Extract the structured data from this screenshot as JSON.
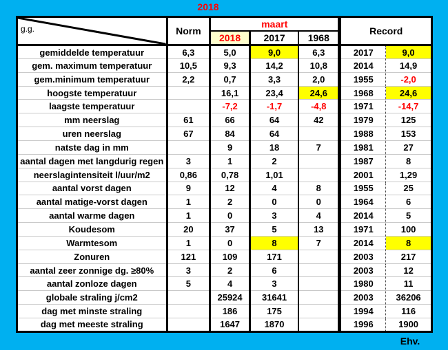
{
  "title": "2018",
  "corner_label": "g.g.",
  "footer": "Ehv.",
  "header": {
    "norm": "Norm",
    "month_group": "maart",
    "year_cols": [
      "2018",
      "2017",
      "1968"
    ],
    "record": "Record"
  },
  "colors": {
    "background": "#00B0F0",
    "highlight": "#FFFF00",
    "header_2018_bg": "#FFFFCC",
    "accent_red": "#FF0000"
  },
  "rows": [
    {
      "label": "gemiddelde temperatuur",
      "norm": {
        "v": "6,3"
      },
      "y2018": {
        "v": "5,0"
      },
      "y2017": {
        "v": "9,0",
        "hl": true
      },
      "y1968": {
        "v": "6,3"
      },
      "rec_year": {
        "v": "2017"
      },
      "rec_value": {
        "v": "9,0",
        "hl": true
      }
    },
    {
      "label": "gem. maximum temperatuur",
      "norm": {
        "v": "10,5"
      },
      "y2018": {
        "v": "9,3"
      },
      "y2017": {
        "v": "14,2"
      },
      "y1968": {
        "v": "10,8"
      },
      "rec_year": {
        "v": "2014"
      },
      "rec_value": {
        "v": "14,9"
      }
    },
    {
      "label": "gem.minimum temperatuur",
      "norm": {
        "v": "2,2"
      },
      "y2018": {
        "v": "0,7"
      },
      "y2017": {
        "v": "3,3"
      },
      "y1968": {
        "v": "2,0"
      },
      "rec_year": {
        "v": "1955"
      },
      "rec_value": {
        "v": "-2,0",
        "neg": true
      }
    },
    {
      "label": "hoogste temperatuur",
      "norm": {
        "v": ""
      },
      "y2018": {
        "v": "16,1"
      },
      "y2017": {
        "v": "23,4"
      },
      "y1968": {
        "v": "24,6",
        "hl": true
      },
      "rec_year": {
        "v": "1968"
      },
      "rec_value": {
        "v": "24,6",
        "hl": true
      }
    },
    {
      "label": "laagste temperatuur",
      "norm": {
        "v": ""
      },
      "y2018": {
        "v": "-7,2",
        "neg": true
      },
      "y2017": {
        "v": "-1,7",
        "neg": true
      },
      "y1968": {
        "v": "-4,8",
        "neg": true
      },
      "rec_year": {
        "v": "1971"
      },
      "rec_value": {
        "v": "-14,7",
        "neg": true
      }
    },
    {
      "label": "mm neerslag",
      "norm": {
        "v": "61"
      },
      "y2018": {
        "v": "66"
      },
      "y2017": {
        "v": "64"
      },
      "y1968": {
        "v": "42"
      },
      "rec_year": {
        "v": "1979"
      },
      "rec_value": {
        "v": "125"
      }
    },
    {
      "label": "uren neerslag",
      "norm": {
        "v": "67"
      },
      "y2018": {
        "v": "84"
      },
      "y2017": {
        "v": "64"
      },
      "y1968": {
        "v": ""
      },
      "rec_year": {
        "v": "1988"
      },
      "rec_value": {
        "v": "153"
      }
    },
    {
      "label": "natste dag in mm",
      "norm": {
        "v": ""
      },
      "y2018": {
        "v": "9"
      },
      "y2017": {
        "v": "18"
      },
      "y1968": {
        "v": "7"
      },
      "rec_year": {
        "v": "1981"
      },
      "rec_value": {
        "v": "27"
      }
    },
    {
      "label": "aantal dagen met langdurig regen",
      "norm": {
        "v": "3"
      },
      "y2018": {
        "v": "1"
      },
      "y2017": {
        "v": "2"
      },
      "y1968": {
        "v": ""
      },
      "rec_year": {
        "v": "1987"
      },
      "rec_value": {
        "v": "8"
      }
    },
    {
      "label": "neerslagintensiteit  l/uur/m2",
      "norm": {
        "v": "0,86"
      },
      "y2018": {
        "v": "0,78"
      },
      "y2017": {
        "v": "1,01"
      },
      "y1968": {
        "v": ""
      },
      "rec_year": {
        "v": "2001"
      },
      "rec_value": {
        "v": "1,29"
      }
    },
    {
      "label": "aantal vorst dagen",
      "norm": {
        "v": "9"
      },
      "y2018": {
        "v": "12"
      },
      "y2017": {
        "v": "4"
      },
      "y1968": {
        "v": "8"
      },
      "rec_year": {
        "v": "1955"
      },
      "rec_value": {
        "v": "25"
      }
    },
    {
      "label": "aantal matige-vorst dagen",
      "norm": {
        "v": "1"
      },
      "y2018": {
        "v": "2"
      },
      "y2017": {
        "v": "0"
      },
      "y1968": {
        "v": "0"
      },
      "rec_year": {
        "v": "1964"
      },
      "rec_value": {
        "v": "6"
      }
    },
    {
      "label": "aantal warme dagen",
      "norm": {
        "v": "1"
      },
      "y2018": {
        "v": "0"
      },
      "y2017": {
        "v": "3"
      },
      "y1968": {
        "v": "4"
      },
      "rec_year": {
        "v": "2014"
      },
      "rec_value": {
        "v": "5"
      }
    },
    {
      "label": "Koudesom",
      "norm": {
        "v": "20"
      },
      "y2018": {
        "v": "37"
      },
      "y2017": {
        "v": "5"
      },
      "y1968": {
        "v": "13"
      },
      "rec_year": {
        "v": "1971"
      },
      "rec_value": {
        "v": "100"
      }
    },
    {
      "label": "Warmtesom",
      "norm": {
        "v": "1"
      },
      "y2018": {
        "v": "0"
      },
      "y2017": {
        "v": "8",
        "hl": true
      },
      "y1968": {
        "v": "7"
      },
      "rec_year": {
        "v": "2014"
      },
      "rec_value": {
        "v": "8",
        "hl": true
      }
    },
    {
      "label": "Zonuren",
      "norm": {
        "v": "121"
      },
      "y2018": {
        "v": "109"
      },
      "y2017": {
        "v": "171"
      },
      "y1968": {
        "v": ""
      },
      "rec_year": {
        "v": "2003"
      },
      "rec_value": {
        "v": "217"
      }
    },
    {
      "label": "aantal zeer zonnige dg. ≥80%",
      "norm": {
        "v": "3"
      },
      "y2018": {
        "v": "2"
      },
      "y2017": {
        "v": "6"
      },
      "y1968": {
        "v": ""
      },
      "rec_year": {
        "v": "2003"
      },
      "rec_value": {
        "v": "12"
      }
    },
    {
      "label": "aantal zonloze dagen",
      "norm": {
        "v": "5"
      },
      "y2018": {
        "v": "4"
      },
      "y2017": {
        "v": "3"
      },
      "y1968": {
        "v": ""
      },
      "rec_year": {
        "v": "1980"
      },
      "rec_value": {
        "v": "11"
      }
    },
    {
      "label": "globale straling  j/cm2",
      "norm": {
        "v": ""
      },
      "y2018": {
        "v": "25924"
      },
      "y2017": {
        "v": "31641"
      },
      "y1968": {
        "v": ""
      },
      "rec_year": {
        "v": "2003"
      },
      "rec_value": {
        "v": "36206"
      }
    },
    {
      "label": "dag met minste straling",
      "norm": {
        "v": ""
      },
      "y2018": {
        "v": "186"
      },
      "y2017": {
        "v": "175"
      },
      "y1968": {
        "v": ""
      },
      "rec_year": {
        "v": "1994"
      },
      "rec_value": {
        "v": "116"
      }
    },
    {
      "label": "dag met meeste straling",
      "norm": {
        "v": ""
      },
      "y2018": {
        "v": "1647"
      },
      "y2017": {
        "v": "1870"
      },
      "y1968": {
        "v": ""
      },
      "rec_year": {
        "v": "1996"
      },
      "rec_value": {
        "v": "1900"
      }
    }
  ]
}
